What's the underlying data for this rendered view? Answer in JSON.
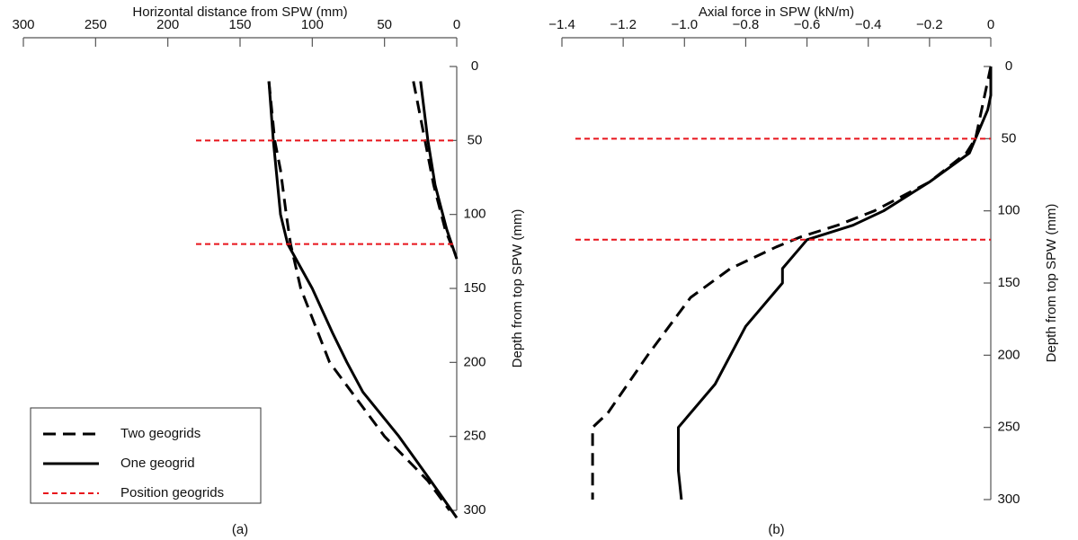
{
  "chart_data": [
    {
      "type": "line",
      "caption": "(a)",
      "x_label": "Horizontal distance from SPW (mm)",
      "y_label": "Depth from top SPW (mm)",
      "xlim": [
        300,
        0
      ],
      "xticks": [
        300,
        250,
        200,
        150,
        100,
        50,
        0
      ],
      "ylim": [
        0,
        300
      ],
      "yticks": [
        0,
        50,
        100,
        150,
        200,
        250,
        300
      ],
      "y_reversed": true,
      "legend": "lower left",
      "series": [
        {
          "name": "Two geogrids",
          "color": "#000000",
          "style": "dashed",
          "y": [
            10,
            50,
            70,
            100,
            120,
            150,
            200,
            250,
            280,
            300,
            null,
            10,
            50,
            80,
            110,
            125
          ],
          "values": [
            130,
            126,
            122,
            118,
            115,
            108,
            88,
            50,
            20,
            5,
            null,
            30,
            22,
            16,
            8,
            2
          ]
        },
        {
          "name": "One geogrid",
          "color": "#000000",
          "style": "solid",
          "y": [
            10,
            50,
            60,
            100,
            120,
            150,
            180,
            200,
            220,
            250,
            280,
            305,
            null,
            10,
            50,
            80,
            110,
            130
          ],
          "values": [
            130,
            127,
            126,
            122,
            117,
            100,
            86,
            76,
            65,
            40,
            18,
            0,
            null,
            25,
            20,
            15,
            7,
            0
          ]
        },
        {
          "name": "Position geogrids",
          "color": "#e8141b",
          "style": "rule",
          "y": [
            50,
            120
          ]
        }
      ]
    },
    {
      "type": "line",
      "caption": "(b)",
      "x_label": "Axial force in SPW (kN/m)",
      "y_label": "Depth from top SPW (mm)",
      "xlim": [
        -1.4,
        0
      ],
      "xticks": [
        {
          "value": -1.4,
          "label": "−1.4"
        },
        {
          "value": -1.2,
          "label": "−1.2"
        },
        {
          "value": -1.0,
          "label": "−1.0"
        },
        {
          "value": -0.8,
          "label": "−0.8"
        },
        {
          "value": -0.6,
          "label": "−0.6"
        },
        {
          "value": -0.4,
          "label": "−0.4"
        },
        {
          "value": -0.2,
          "label": "−0.2"
        },
        0
      ],
      "ylim": [
        0,
        300
      ],
      "yticks": [
        0,
        50,
        100,
        150,
        200,
        250,
        300
      ],
      "y_reversed": true,
      "series": [
        {
          "color": "#000000",
          "style": "dashed",
          "y": [
            0,
            50,
            60,
            80,
            100,
            110,
            118,
            125,
            140,
            160,
            200,
            240,
            250,
            300
          ],
          "values": [
            0,
            -0.05,
            -0.08,
            -0.2,
            -0.38,
            -0.5,
            -0.62,
            -0.7,
            -0.85,
            -0.98,
            -1.12,
            -1.25,
            -1.3,
            -1.3
          ]
        },
        {
          "color": "#000000",
          "style": "solid",
          "y": [
            0,
            20,
            30,
            50,
            60,
            80,
            100,
            110,
            120,
            125,
            140,
            150,
            180,
            220,
            250,
            280,
            300
          ],
          "values": [
            0,
            0,
            -0.01,
            -0.05,
            -0.07,
            -0.2,
            -0.35,
            -0.45,
            -0.6,
            -0.62,
            -0.68,
            -0.68,
            -0.8,
            -0.9,
            -1.02,
            -1.02,
            -1.01
          ]
        },
        {
          "color": "#e8141b",
          "style": "rule",
          "y": [
            50,
            120
          ]
        }
      ]
    }
  ]
}
